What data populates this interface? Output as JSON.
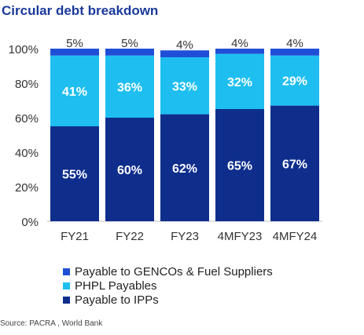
{
  "title": "Circular debt breakdown",
  "source": "Source: PACRA , World Bank",
  "chart_data": {
    "type": "bar",
    "stacked": true,
    "categories": [
      "FY21",
      "FY22",
      "FY23",
      "4MFY23",
      "4MFY24"
    ],
    "series": [
      {
        "name": "Payable to IPPs",
        "color": "#0f2e8c",
        "values": [
          55,
          60,
          62,
          65,
          67
        ]
      },
      {
        "name": "PHPL Payables",
        "color": "#1ebff0",
        "values": [
          41,
          36,
          33,
          32,
          29
        ]
      },
      {
        "name": "Payable to GENCOs & Fuel Suppliers",
        "color": "#1f4fd6",
        "values": [
          5,
          5,
          4,
          4,
          4
        ]
      }
    ],
    "data_labels": {
      "Payable to IPPs": [
        "55%",
        "60%",
        "62%",
        "65%",
        "67%"
      ],
      "PHPL Payables": [
        "41%",
        "36%",
        "33%",
        "32%",
        "29%"
      ],
      "Payable to GENCOs & Fuel Suppliers": [
        "5%",
        "5%",
        "4%",
        "4%",
        "4%"
      ]
    },
    "y_ticks": [
      "0%",
      "20%",
      "40%",
      "60%",
      "80%",
      "100%"
    ],
    "ylim": [
      0,
      100
    ],
    "grid": false,
    "legend_position": "bottom",
    "legend_order": [
      "Payable to GENCOs & Fuel Suppliers",
      "PHPL Payables",
      "Payable to IPPs"
    ]
  }
}
